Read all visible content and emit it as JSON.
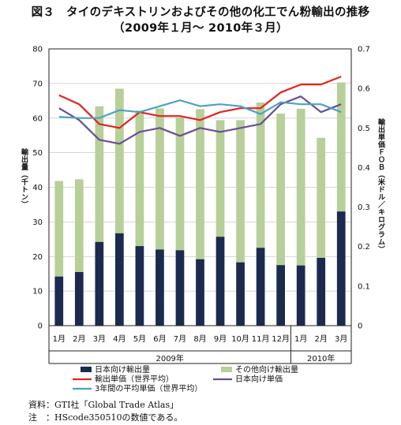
{
  "title_line1": "図３　タイのデキストリンおよびその他の化工でん粉輸出の推移",
  "title_line2": "（2009年１月～ 2010年３月）",
  "ylabel_left": "輸出量（千トン）",
  "ylabel_right": "輸出単価ＦＯＢ（米ドル／キログラム）",
  "note_source": "資料：GTI社「Global Trade Atlas」",
  "note_remark": "注　：HScode350510の数値である。",
  "chart_data": {
    "type": "bar",
    "categories": [
      "1月",
      "2月",
      "3月",
      "4月",
      "5月",
      "6月",
      "7月",
      "8月",
      "9月",
      "10月",
      "11月",
      "12月",
      "1月",
      "2月",
      "3月"
    ],
    "year_groups": [
      {
        "label": "2009年",
        "months": 12
      },
      {
        "label": "2010年",
        "months": 3
      }
    ],
    "stacked": true,
    "ylim": [
      0,
      80
    ],
    "y_ticks": [
      0,
      10,
      20,
      30,
      40,
      50,
      60,
      70,
      80
    ],
    "y2lim": [
      0,
      0.7
    ],
    "y2_ticks": [
      "0",
      "0.1",
      "0.2",
      "0.3",
      "0.4",
      "0.5",
      "0.6",
      "0.7"
    ],
    "bar_series": [
      {
        "name": "日本向け輸出量",
        "color": "#1b2a4e",
        "values": [
          14.2,
          15.5,
          24.2,
          26.7,
          23.0,
          22.0,
          21.8,
          19.2,
          25.7,
          18.3,
          22.5,
          17.5,
          17.4,
          19.6,
          33.0
        ]
      },
      {
        "name": "その他向け輸出量",
        "color": "#b7cf98",
        "values": [
          27.6,
          26.8,
          39.2,
          41.8,
          39.2,
          40.8,
          38.4,
          43.4,
          33.7,
          41.1,
          42.0,
          43.8,
          45.3,
          34.7,
          37.3
        ]
      }
    ],
    "line_series": [
      {
        "name": "輸出単価（世界平均）",
        "color": "#e3231f",
        "values": [
          0.583,
          0.56,
          0.51,
          0.5,
          0.54,
          0.53,
          0.53,
          0.52,
          0.54,
          0.55,
          0.55,
          0.59,
          0.61,
          0.61,
          0.63
        ]
      },
      {
        "name": "日本向け単価",
        "color": "#6a4f97",
        "values": [
          0.55,
          0.52,
          0.47,
          0.46,
          0.49,
          0.5,
          0.48,
          0.5,
          0.49,
          0.5,
          0.51,
          0.56,
          0.58,
          0.54,
          0.56
        ]
      },
      {
        "name": "3年間の平均単価（世界平均）",
        "color": "#4aa3c6",
        "values": [
          0.528,
          0.525,
          0.525,
          0.545,
          0.54,
          0.555,
          0.57,
          0.555,
          0.56,
          0.555,
          0.535,
          0.565,
          0.56,
          0.56,
          0.54
        ]
      }
    ]
  }
}
